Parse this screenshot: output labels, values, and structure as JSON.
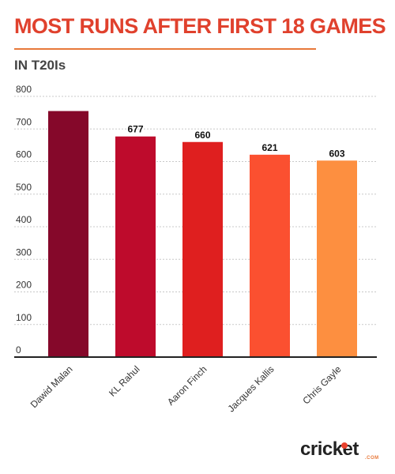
{
  "header": {
    "title": "MOST RUNS AFTER FIRST 18 GAMES",
    "subtitle": "IN T20Is"
  },
  "brand": {
    "name": "cricket",
    "suffix": ".COM"
  },
  "chart_data": {
    "type": "bar",
    "title": "MOST RUNS AFTER FIRST 18 GAMES",
    "subtitle": "IN T20Is",
    "categories": [
      "Dawid Malan",
      "KL Rahul",
      "Aaron Finch",
      "Jacques Kallis",
      "Chris Gayle"
    ],
    "values": [
      755,
      677,
      660,
      621,
      603
    ],
    "data_labels": [
      "",
      "677",
      "660",
      "621",
      "603"
    ],
    "colors": [
      "#85082a",
      "#be0b2c",
      "#df1f1f",
      "#fb5030",
      "#fd8f40"
    ],
    "yticks": [
      0,
      100,
      200,
      300,
      400,
      500,
      600,
      700,
      800
    ],
    "ylim": [
      0,
      800
    ],
    "xlabel": "",
    "ylabel": "",
    "grid": true,
    "grid_color": "#c8c8c8"
  }
}
